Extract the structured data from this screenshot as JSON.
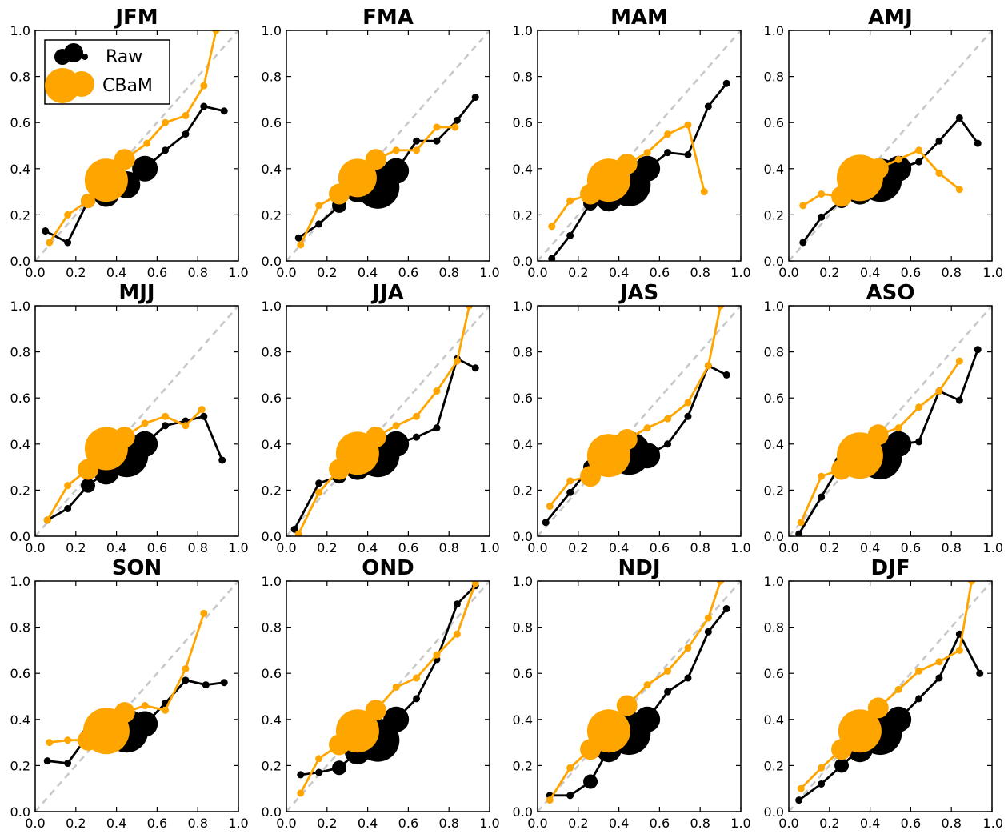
{
  "colors": {
    "raw": "#000000",
    "cbam": "#FFA500",
    "diagonal": "#c8c8c8",
    "axes": "#000000"
  },
  "chart_data": {
    "type": "line",
    "grid": false,
    "xlim": [
      0.0,
      1.0
    ],
    "ylim": [
      0.0,
      1.0
    ],
    "xticks": [
      "0.0",
      "0.2",
      "0.4",
      "0.6",
      "0.8",
      "1.0"
    ],
    "yticks": [
      "0.0",
      "0.2",
      "0.4",
      "0.6",
      "0.8",
      "1.0"
    ],
    "reference_line": {
      "style": "dashed",
      "x": [
        0,
        1
      ],
      "y": [
        0,
        1
      ]
    },
    "legend": {
      "placement": "top-left (first panel)",
      "entries": [
        "Raw",
        "CBaM"
      ]
    },
    "panels": [
      {
        "title": "JFM",
        "series": [
          {
            "name": "Raw",
            "x": [
              0.05,
              0.16,
              0.26,
              0.35,
              0.45,
              0.54,
              0.64,
              0.74,
              0.83,
              0.93
            ],
            "y": [
              0.13,
              0.08,
              0.26,
              0.29,
              0.33,
              0.4,
              0.48,
              0.55,
              0.67,
              0.65
            ],
            "size": [
              1,
              1,
              2,
              4,
              5,
              4,
              1,
              1,
              1,
              1
            ]
          },
          {
            "name": "CBaM",
            "x": [
              0.07,
              0.16,
              0.26,
              0.35,
              0.44,
              0.55,
              0.64,
              0.74,
              0.83,
              0.89
            ],
            "y": [
              0.08,
              0.2,
              0.26,
              0.35,
              0.44,
              0.51,
              0.6,
              0.63,
              0.76,
              1.0
            ],
            "size": [
              1,
              1,
              2,
              7,
              3,
              1,
              1,
              1,
              1,
              1
            ]
          }
        ]
      },
      {
        "title": "FMA",
        "series": [
          {
            "name": "Raw",
            "x": [
              0.06,
              0.16,
              0.26,
              0.35,
              0.45,
              0.54,
              0.64,
              0.74,
              0.84,
              0.93
            ],
            "y": [
              0.1,
              0.16,
              0.24,
              0.31,
              0.32,
              0.39,
              0.52,
              0.52,
              0.61,
              0.71
            ],
            "size": [
              1,
              1,
              2,
              4,
              7,
              4,
              1,
              1,
              1,
              1
            ]
          },
          {
            "name": "CBaM",
            "x": [
              0.07,
              0.16,
              0.26,
              0.35,
              0.44,
              0.54,
              0.64,
              0.74,
              0.83
            ],
            "y": [
              0.07,
              0.24,
              0.29,
              0.36,
              0.44,
              0.48,
              0.48,
              0.58,
              0.58
            ],
            "size": [
              1,
              1,
              3,
              6,
              3,
              1,
              1,
              1,
              1
            ]
          }
        ]
      },
      {
        "title": "MAM",
        "series": [
          {
            "name": "Raw",
            "x": [
              0.07,
              0.16,
              0.26,
              0.35,
              0.45,
              0.54,
              0.64,
              0.74,
              0.84,
              0.93
            ],
            "y": [
              0.01,
              0.11,
              0.25,
              0.27,
              0.33,
              0.4,
              0.47,
              0.46,
              0.67,
              0.77
            ],
            "size": [
              1,
              1,
              2,
              4,
              7,
              4,
              1,
              1,
              1,
              1
            ]
          },
          {
            "name": "CBaM",
            "x": [
              0.07,
              0.16,
              0.26,
              0.35,
              0.44,
              0.54,
              0.64,
              0.74,
              0.82
            ],
            "y": [
              0.15,
              0.26,
              0.29,
              0.35,
              0.42,
              0.47,
              0.55,
              0.59,
              0.3
            ],
            "size": [
              1,
              1,
              3,
              7,
              3,
              1,
              1,
              1,
              1
            ]
          }
        ]
      },
      {
        "title": "AMJ",
        "series": [
          {
            "name": "Raw",
            "x": [
              0.07,
              0.16,
              0.26,
              0.35,
              0.45,
              0.54,
              0.64,
              0.74,
              0.84,
              0.93
            ],
            "y": [
              0.08,
              0.19,
              0.26,
              0.3,
              0.35,
              0.4,
              0.43,
              0.52,
              0.62,
              0.51
            ],
            "size": [
              1,
              1,
              2,
              4,
              7,
              4,
              1,
              1,
              1,
              1
            ]
          },
          {
            "name": "CBaM",
            "x": [
              0.07,
              0.16,
              0.26,
              0.35,
              0.44,
              0.54,
              0.64,
              0.74,
              0.84
            ],
            "y": [
              0.24,
              0.29,
              0.28,
              0.36,
              0.4,
              0.44,
              0.48,
              0.38,
              0.31
            ],
            "size": [
              1,
              1,
              3,
              8,
              3,
              1,
              1,
              1,
              1
            ]
          }
        ]
      },
      {
        "title": "MJJ",
        "series": [
          {
            "name": "Raw",
            "x": [
              0.06,
              0.16,
              0.26,
              0.35,
              0.45,
              0.54,
              0.64,
              0.74,
              0.83,
              0.92
            ],
            "y": [
              0.07,
              0.12,
              0.22,
              0.28,
              0.35,
              0.4,
              0.48,
              0.5,
              0.52,
              0.33
            ],
            "size": [
              1,
              1,
              2,
              4,
              7,
              4,
              1,
              1,
              1,
              1
            ]
          },
          {
            "name": "CBaM",
            "x": [
              0.06,
              0.16,
              0.26,
              0.35,
              0.44,
              0.54,
              0.64,
              0.74,
              0.82
            ],
            "y": [
              0.07,
              0.22,
              0.29,
              0.38,
              0.43,
              0.49,
              0.52,
              0.48,
              0.55
            ],
            "size": [
              1,
              1,
              3,
              7,
              3,
              1,
              1,
              1,
              1
            ]
          }
        ]
      },
      {
        "title": "JJA",
        "series": [
          {
            "name": "Raw",
            "x": [
              0.04,
              0.16,
              0.26,
              0.35,
              0.45,
              0.54,
              0.64,
              0.74,
              0.84,
              0.93
            ],
            "y": [
              0.03,
              0.23,
              0.26,
              0.3,
              0.35,
              0.4,
              0.43,
              0.47,
              0.77,
              0.73
            ],
            "size": [
              1,
              1,
              2,
              4,
              7,
              4,
              1,
              1,
              1,
              1
            ]
          },
          {
            "name": "CBaM",
            "x": [
              0.06,
              0.16,
              0.26,
              0.35,
              0.44,
              0.54,
              0.64,
              0.74,
              0.84,
              0.9
            ],
            "y": [
              0.01,
              0.19,
              0.29,
              0.36,
              0.43,
              0.48,
              0.52,
              0.63,
              0.76,
              1.0
            ],
            "size": [
              1,
              1,
              3,
              7,
              3,
              1,
              1,
              1,
              1,
              1
            ]
          }
        ]
      },
      {
        "title": "JAS",
        "series": [
          {
            "name": "Raw",
            "x": [
              0.04,
              0.16,
              0.26,
              0.35,
              0.45,
              0.54,
              0.64,
              0.74,
              0.84,
              0.93
            ],
            "y": [
              0.06,
              0.19,
              0.3,
              0.37,
              0.36,
              0.35,
              0.4,
              0.52,
              0.74,
              0.7
            ],
            "size": [
              1,
              1,
              2,
              4,
              7,
              4,
              1,
              1,
              1,
              1
            ]
          },
          {
            "name": "CBaM",
            "x": [
              0.06,
              0.16,
              0.26,
              0.35,
              0.44,
              0.54,
              0.64,
              0.74,
              0.84,
              0.9
            ],
            "y": [
              0.13,
              0.24,
              0.26,
              0.35,
              0.42,
              0.47,
              0.51,
              0.58,
              0.74,
              1.0
            ],
            "size": [
              1,
              1,
              3,
              7,
              3,
              1,
              1,
              1,
              1,
              1
            ]
          }
        ]
      },
      {
        "title": "ASO",
        "series": [
          {
            "name": "Raw",
            "x": [
              0.05,
              0.16,
              0.26,
              0.35,
              0.45,
              0.54,
              0.64,
              0.74,
              0.84,
              0.93
            ],
            "y": [
              0.01,
              0.17,
              0.32,
              0.31,
              0.34,
              0.4,
              0.41,
              0.63,
              0.59,
              0.81
            ],
            "size": [
              1,
              1,
              2,
              4,
              7,
              4,
              1,
              1,
              1,
              1
            ]
          },
          {
            "name": "CBaM",
            "x": [
              0.06,
              0.16,
              0.26,
              0.35,
              0.44,
              0.54,
              0.64,
              0.74,
              0.84
            ],
            "y": [
              0.06,
              0.26,
              0.29,
              0.35,
              0.44,
              0.47,
              0.56,
              0.63,
              0.76
            ],
            "size": [
              1,
              1,
              3,
              8,
              3,
              1,
              1,
              1,
              1
            ]
          }
        ]
      },
      {
        "title": "SON",
        "series": [
          {
            "name": "Raw",
            "x": [
              0.06,
              0.16,
              0.26,
              0.35,
              0.45,
              0.54,
              0.64,
              0.74,
              0.84,
              0.93
            ],
            "y": [
              0.22,
              0.21,
              0.33,
              0.31,
              0.35,
              0.38,
              0.47,
              0.57,
              0.55,
              0.56
            ],
            "size": [
              1,
              1,
              2,
              4,
              7,
              4,
              1,
              1,
              1,
              1
            ]
          },
          {
            "name": "CBaM",
            "x": [
              0.07,
              0.16,
              0.26,
              0.35,
              0.44,
              0.54,
              0.64,
              0.74,
              0.83
            ],
            "y": [
              0.3,
              0.31,
              0.31,
              0.35,
              0.43,
              0.46,
              0.44,
              0.62,
              0.86
            ],
            "size": [
              1,
              1,
              3,
              8,
              3,
              1,
              1,
              1,
              1
            ]
          }
        ]
      },
      {
        "title": "OND",
        "series": [
          {
            "name": "Raw",
            "x": [
              0.07,
              0.16,
              0.26,
              0.35,
              0.45,
              0.54,
              0.64,
              0.74,
              0.84,
              0.93
            ],
            "y": [
              0.16,
              0.17,
              0.19,
              0.26,
              0.31,
              0.4,
              0.49,
              0.66,
              0.9,
              0.98
            ],
            "size": [
              1,
              1,
              2,
              4,
              7,
              4,
              1,
              1,
              1,
              1
            ]
          },
          {
            "name": "CBaM",
            "x": [
              0.07,
              0.16,
              0.26,
              0.35,
              0.44,
              0.54,
              0.64,
              0.74,
              0.84,
              0.93
            ],
            "y": [
              0.08,
              0.23,
              0.29,
              0.35,
              0.44,
              0.54,
              0.58,
              0.68,
              0.77,
              0.99
            ],
            "size": [
              1,
              1,
              3,
              7,
              3,
              1,
              1,
              1,
              1,
              1
            ]
          }
        ]
      },
      {
        "title": "NDJ",
        "series": [
          {
            "name": "Raw",
            "x": [
              0.06,
              0.16,
              0.26,
              0.35,
              0.45,
              0.54,
              0.64,
              0.74,
              0.84,
              0.93
            ],
            "y": [
              0.07,
              0.07,
              0.13,
              0.27,
              0.34,
              0.4,
              0.52,
              0.58,
              0.78,
              0.88
            ],
            "size": [
              1,
              1,
              2,
              4,
              7,
              4,
              1,
              1,
              1,
              1
            ]
          },
          {
            "name": "CBaM",
            "x": [
              0.06,
              0.16,
              0.26,
              0.35,
              0.44,
              0.54,
              0.64,
              0.74,
              0.84,
              0.9
            ],
            "y": [
              0.05,
              0.19,
              0.27,
              0.35,
              0.46,
              0.55,
              0.61,
              0.71,
              0.84,
              1.0
            ],
            "size": [
              1,
              1,
              3,
              7,
              3,
              1,
              1,
              1,
              1,
              1
            ]
          }
        ]
      },
      {
        "title": "DJF",
        "series": [
          {
            "name": "Raw",
            "x": [
              0.05,
              0.16,
              0.26,
              0.35,
              0.45,
              0.54,
              0.64,
              0.74,
              0.84,
              0.94
            ],
            "y": [
              0.05,
              0.12,
              0.2,
              0.27,
              0.34,
              0.4,
              0.49,
              0.58,
              0.77,
              0.6
            ],
            "size": [
              1,
              1,
              2,
              4,
              7,
              4,
              1,
              1,
              1,
              1
            ]
          },
          {
            "name": "CBaM",
            "x": [
              0.06,
              0.16,
              0.26,
              0.35,
              0.44,
              0.54,
              0.64,
              0.74,
              0.84,
              0.9
            ],
            "y": [
              0.1,
              0.19,
              0.27,
              0.35,
              0.45,
              0.53,
              0.61,
              0.65,
              0.7,
              1.0
            ],
            "size": [
              1,
              1,
              3,
              7,
              3,
              1,
              1,
              1,
              1,
              1
            ]
          }
        ]
      }
    ]
  }
}
